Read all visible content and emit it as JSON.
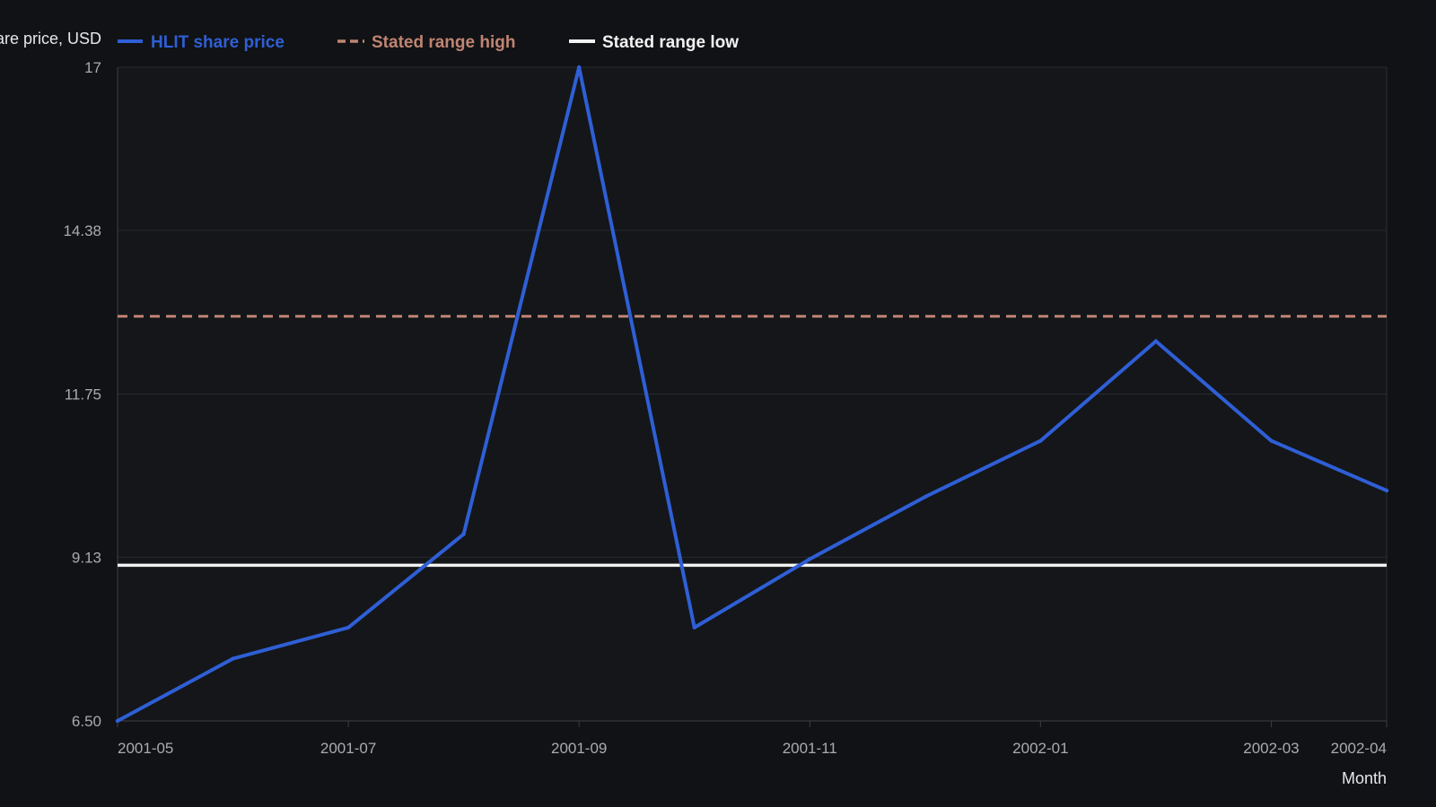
{
  "chart_data": {
    "type": "line",
    "title": "",
    "xlabel": "Month",
    "ylabel": "Share price, USD",
    "x": [
      "2001-05",
      "2001-06",
      "2001-07",
      "2001-08",
      "2001-09",
      "2001-10",
      "2001-11",
      "2001-12",
      "2002-01",
      "2002-02",
      "2002-03",
      "2002-04"
    ],
    "x_tick_labels": [
      "2001-05",
      "2001-07",
      "2001-09",
      "2001-11",
      "2002-01",
      "2002-03",
      "2002-04"
    ],
    "y_ticks": [
      "6.50",
      "9.13",
      "11.75",
      "14.38",
      "17"
    ],
    "ylim": [
      6.5,
      17
    ],
    "grid": "horizontal",
    "legend_position": "top-left",
    "series": [
      {
        "name": "HLIT share price",
        "color": "#2f5fd6",
        "style": "solid",
        "values": [
          6.5,
          7.5,
          8.0,
          9.5,
          17.0,
          8.0,
          9.1,
          10.1,
          11.0,
          12.6,
          11.0,
          10.2
        ]
      }
    ],
    "reference_lines": [
      {
        "name": "Stated range high",
        "value": 13.0,
        "color": "#c08472",
        "style": "dashed"
      },
      {
        "name": "Stated range low",
        "value": 9.0,
        "color": "#f2f2f2",
        "style": "solid"
      }
    ]
  }
}
